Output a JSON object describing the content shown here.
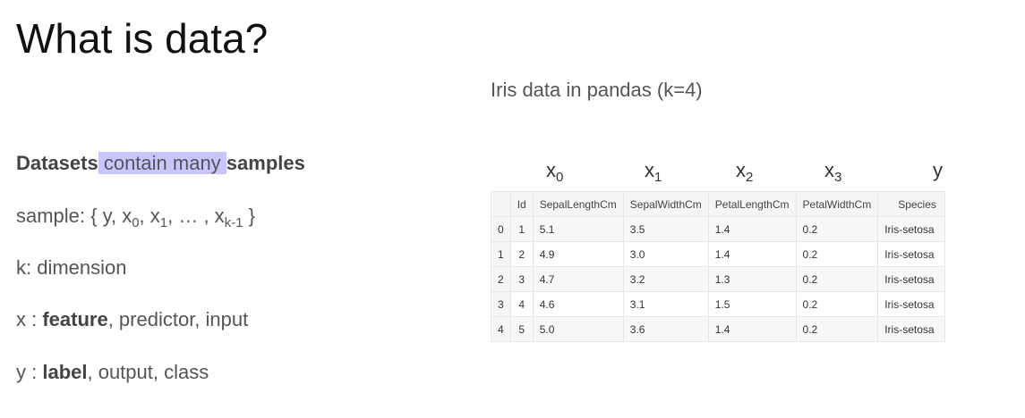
{
  "title": "What is data?",
  "left": {
    "line1": {
      "bold_a": "Datasets",
      "highlight": " contain many ",
      "bold_b": "samples"
    },
    "line2": {
      "prefix": "sample: { y, x",
      "s0": "0",
      "c1": ", x",
      "s1": "1",
      "mid": ", … , x",
      "sk": "k-1",
      "suffix": " }"
    },
    "line3": "k: dimension",
    "line4": {
      "prefix": "x : ",
      "bold": "feature",
      "suffix": ", predictor, input"
    },
    "line5": {
      "prefix": "y : ",
      "bold": "label",
      "suffix": ", output, class"
    }
  },
  "caption": "Iris data in pandas (k=4)",
  "variables": [
    {
      "base": "x",
      "sub": "0"
    },
    {
      "base": "x",
      "sub": "1"
    },
    {
      "base": "x",
      "sub": "2"
    },
    {
      "base": "x",
      "sub": "3"
    },
    {
      "base": "y",
      "sub": ""
    }
  ],
  "table": {
    "columns": [
      "",
      "Id",
      "SepalLengthCm",
      "SepalWidthCm",
      "PetalLengthCm",
      "PetalWidthCm",
      "Species"
    ],
    "rows": [
      [
        "0",
        "1",
        "5.1",
        "3.5",
        "1.4",
        "0.2",
        "Iris-setosa"
      ],
      [
        "1",
        "2",
        "4.9",
        "3.0",
        "1.4",
        "0.2",
        "Iris-setosa"
      ],
      [
        "2",
        "3",
        "4.7",
        "3.2",
        "1.3",
        "0.2",
        "Iris-setosa"
      ],
      [
        "3",
        "4",
        "4.6",
        "3.1",
        "1.5",
        "0.2",
        "Iris-setosa"
      ],
      [
        "4",
        "5",
        "5.0",
        "3.6",
        "1.4",
        "0.2",
        "Iris-setosa"
      ]
    ]
  }
}
